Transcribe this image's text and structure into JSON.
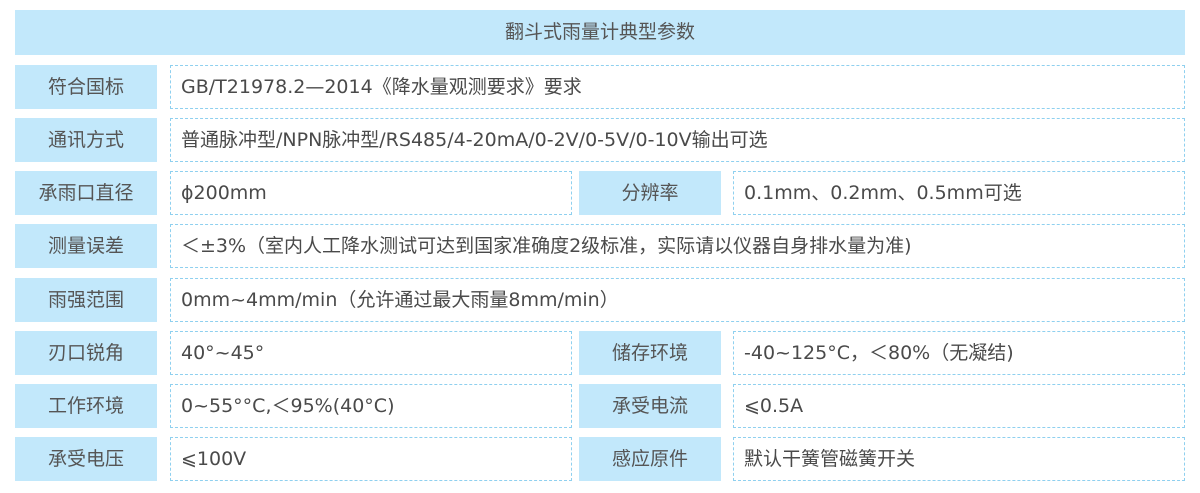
{
  "title": "翻斗式雨量计典型参数",
  "rows": [
    {
      "label": "符合国标",
      "value": "GB/T21978.2—2014《降水量观测要求》要求"
    },
    {
      "label": "通讯方式",
      "value": "普通脉冲型/NPN脉冲型/RS485/4-20mA/0-2V/0-5V/0-10V输出可选"
    },
    {
      "label": "承雨口直径",
      "value": "ϕ200mm",
      "label2": "分辨率",
      "value2": "0.1mm、0.2mm、0.5mm可选"
    },
    {
      "label": "测量误差",
      "value": "＜±3%（室内人工降水测试可达到国家准确度2级标准，实际请以仪器自身排水量为准)"
    },
    {
      "label": "雨强范围",
      "value": "0mm~4mm/min（允许通过最大雨量8mm/min）"
    },
    {
      "label": "刃口锐角",
      "value": "40°~45°",
      "label2": "储存环境",
      "value2": "-40~125°C，＜80%（无凝结)"
    },
    {
      "label": "工作环境",
      "value": "0~55°°C,＜95%(40°C)",
      "label2": "承受电流",
      "value2": "⩽0.5A"
    },
    {
      "label": "承受电压",
      "value": "⩽100V",
      "label2": "感应原件",
      "value2": "默认干簧管磁簧开关"
    }
  ]
}
